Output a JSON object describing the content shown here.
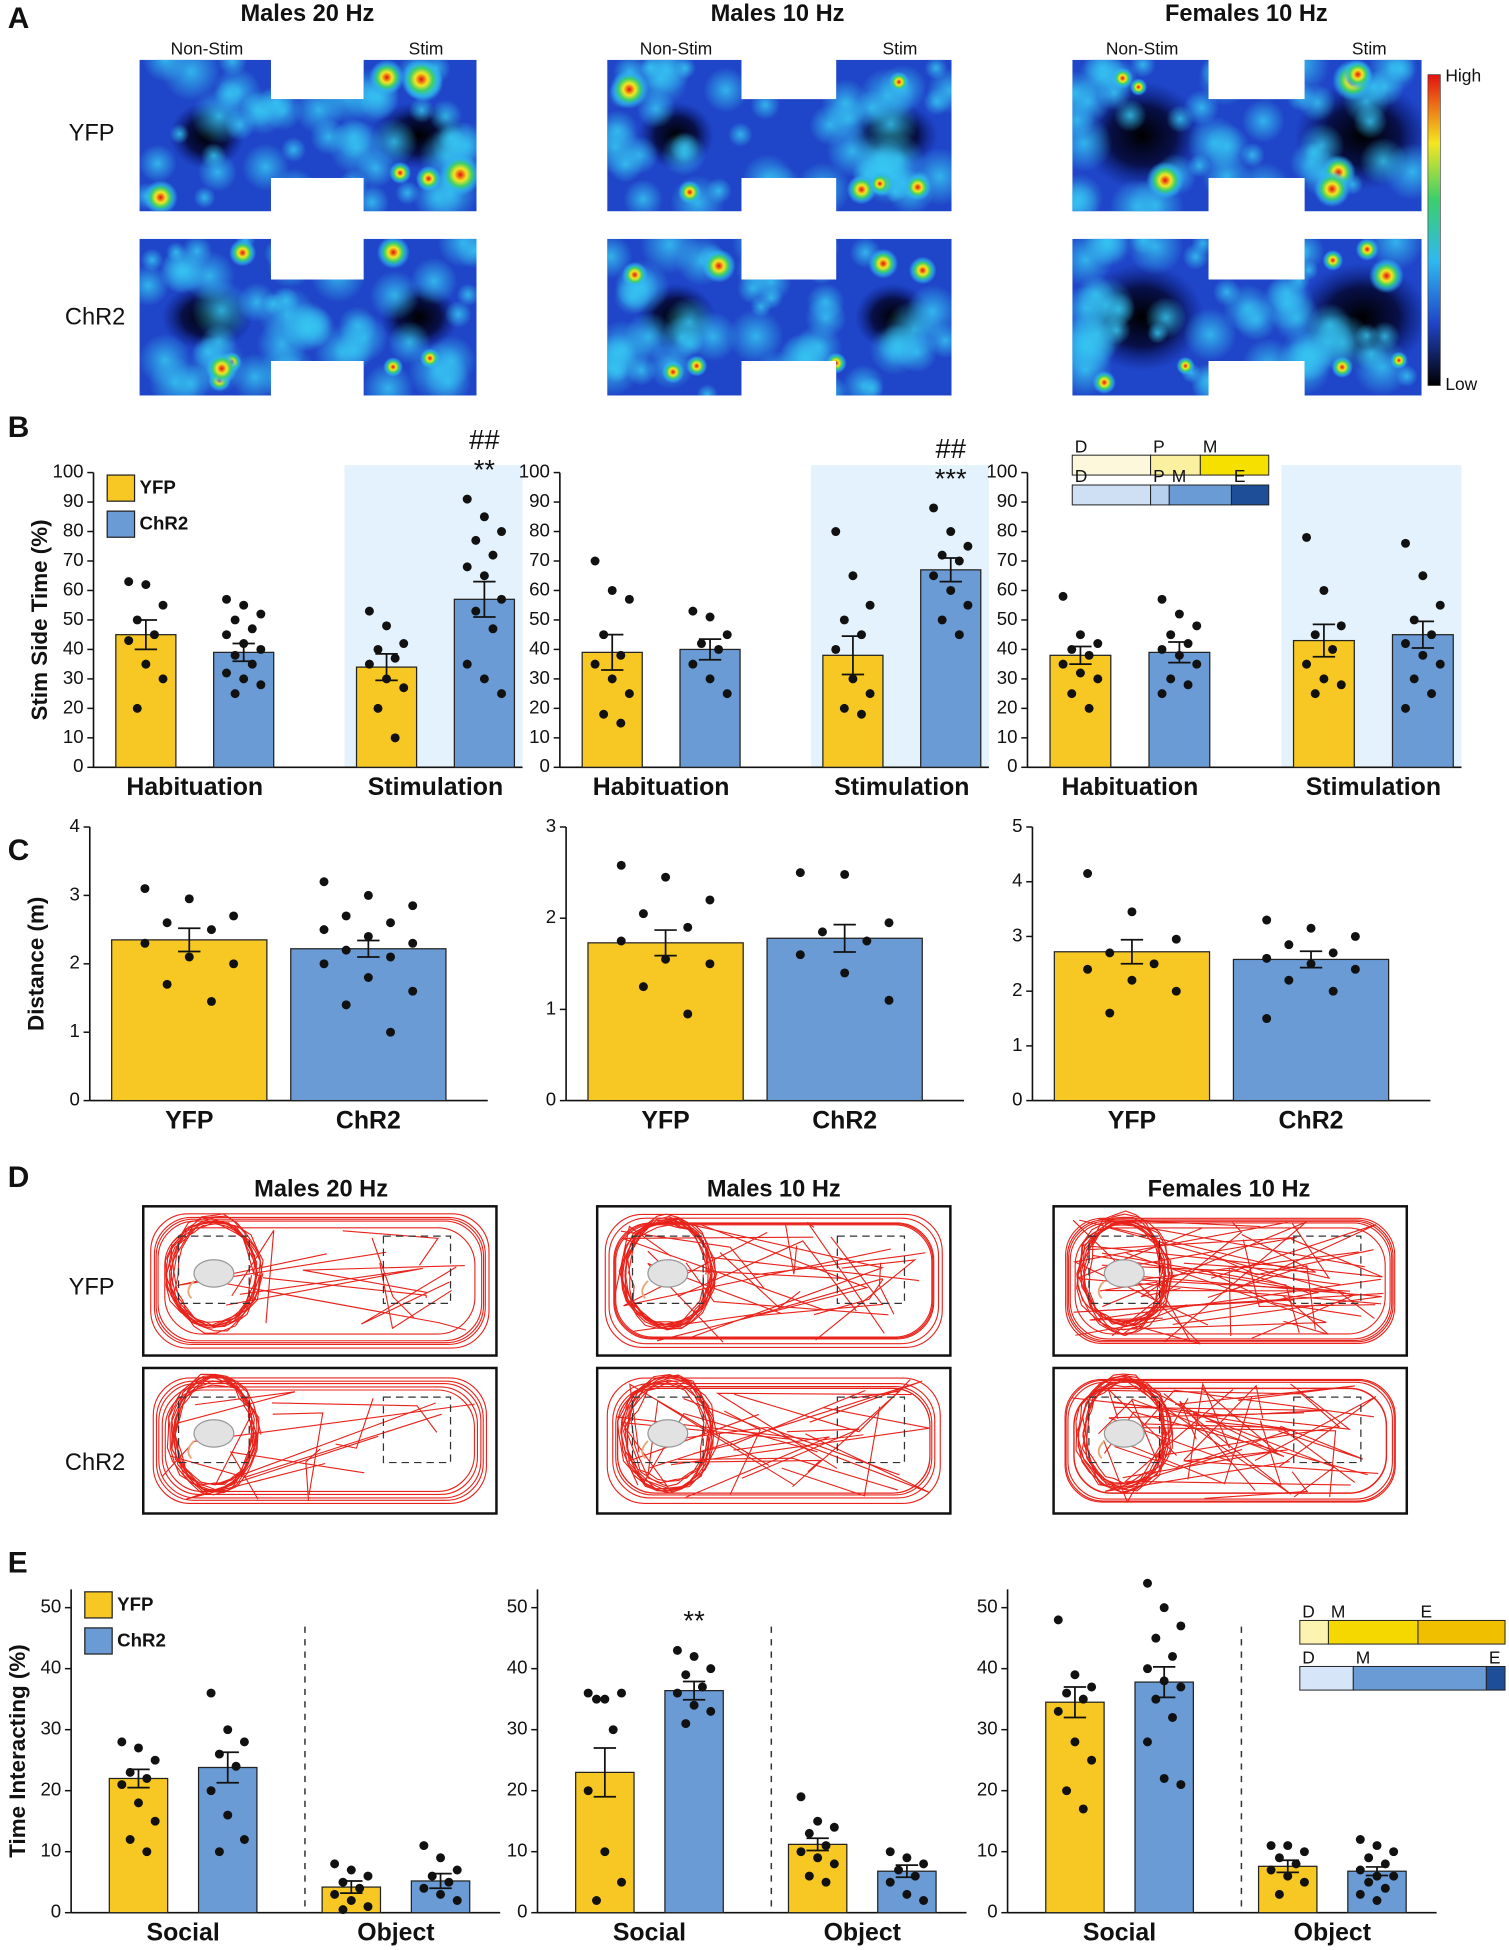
{
  "figure": {
    "panel_labels": [
      "A",
      "B",
      "C",
      "D",
      "E"
    ],
    "columns": [
      "Males 20 Hz",
      "Males 10 Hz",
      "Females 10 Hz"
    ],
    "rows": [
      "YFP",
      "ChR2"
    ],
    "zones": [
      "Non-Stim",
      "Stim"
    ],
    "colorbar": {
      "high": "High",
      "low": "Low"
    }
  },
  "chart_data": [
    {
      "type": "bar",
      "ylabel": "Stim Side Time (%)",
      "ylim": [
        0,
        100
      ],
      "yticks": [
        0,
        10,
        20,
        30,
        40,
        50,
        60,
        70,
        80,
        90,
        100
      ],
      "categories": [
        "Habituation",
        "Stimulation"
      ],
      "highlight_category": "Stimulation",
      "legend": "upper left",
      "series": [
        {
          "name": "YFP",
          "color": "#f7c823",
          "values": [
            45,
            34
          ],
          "errors": [
            5,
            4.5
          ],
          "points": [
            [
              63,
              62,
              55,
              50,
              45,
              43,
              35,
              30,
              20
            ],
            [
              53,
              48,
              42,
              40,
              37,
              35,
              30,
              27,
              20,
              10
            ]
          ]
        },
        {
          "name": "ChR2",
          "color": "#6a9bd5",
          "values": [
            39,
            57
          ],
          "errors": [
            3,
            6
          ],
          "points": [
            [
              57,
              55,
              52,
              50,
              47,
              45,
              42,
              40,
              38,
              35,
              32,
              30,
              28,
              25
            ],
            [
              91,
              85,
              80,
              77,
              72,
              68,
              65,
              57,
              53,
              47,
              35,
              30,
              25
            ]
          ]
        }
      ],
      "annotations": [
        {
          "text": "##",
          "category": "Stimulation",
          "series": "ChR2"
        },
        {
          "text": "**",
          "category": "Stimulation",
          "series": "ChR2"
        }
      ]
    },
    {
      "type": "bar",
      "ylim": [
        0,
        100
      ],
      "yticks": [
        0,
        10,
        20,
        30,
        40,
        50,
        60,
        70,
        80,
        90,
        100
      ],
      "categories": [
        "Habituation",
        "Stimulation"
      ],
      "highlight_category": "Stimulation",
      "series": [
        {
          "name": "YFP",
          "color": "#f7c823",
          "values": [
            39,
            38
          ],
          "errors": [
            6,
            6.5
          ],
          "points": [
            [
              70,
              60,
              57,
              45,
              38,
              35,
              30,
              25,
              18,
              15
            ],
            [
              80,
              65,
              55,
              50,
              45,
              40,
              30,
              25,
              20,
              18
            ]
          ]
        },
        {
          "name": "ChR2",
          "color": "#6a9bd5",
          "values": [
            40,
            67
          ],
          "errors": [
            3.5,
            4
          ],
          "points": [
            [
              53,
              51,
              45,
              42,
              40,
              35,
              30,
              25
            ],
            [
              88,
              80,
              75,
              72,
              70,
              65,
              60,
              55,
              50,
              45
            ]
          ]
        }
      ],
      "annotations": [
        {
          "text": "##",
          "category": "Stimulation",
          "series": "ChR2"
        },
        {
          "text": "***",
          "category": "Stimulation",
          "series": "ChR2"
        }
      ]
    },
    {
      "type": "bar",
      "ylim": [
        0,
        100
      ],
      "yticks": [
        0,
        10,
        20,
        30,
        40,
        50,
        60,
        70,
        80,
        90,
        100
      ],
      "categories": [
        "Habituation",
        "Stimulation"
      ],
      "highlight_category": "Stimulation",
      "series": [
        {
          "name": "YFP",
          "color": "#f7c823",
          "values": [
            38,
            43
          ],
          "errors": [
            3,
            5.5
          ],
          "points": [
            [
              58,
              45,
              42,
              40,
              38,
              35,
              32,
              30,
              25,
              20
            ],
            [
              78,
              60,
              48,
              45,
              40,
              35,
              30,
              28,
              25
            ]
          ]
        },
        {
          "name": "ChR2",
          "color": "#6a9bd5",
          "values": [
            39,
            45
          ],
          "errors": [
            3.5,
            4.5
          ],
          "points": [
            [
              57,
              52,
              48,
              45,
              42,
              40,
              38,
              35,
              30,
              28,
              25
            ],
            [
              76,
              65,
              55,
              50,
              45,
              42,
              38,
              35,
              30,
              25,
              20
            ]
          ]
        }
      ],
      "inset": [
        {
          "segments": [
            {
              "label": "D",
              "color": "#fdf8dc"
            },
            {
              "label": "P",
              "color": "#fbf0a0"
            },
            {
              "label": "M",
              "color": "#f5e000"
            }
          ]
        },
        {
          "segments": [
            {
              "label": "D",
              "color": "#cfe0f5"
            },
            {
              "label": "P",
              "color": "#b7d0ee"
            },
            {
              "label": "M",
              "color": "#6a9bd5"
            },
            {
              "label": "E",
              "color": "#1f4e99"
            }
          ]
        }
      ]
    },
    {
      "type": "bar",
      "ylabel": "Distance (m)",
      "ylim": [
        0,
        4
      ],
      "yticks": [
        0,
        1,
        2,
        3,
        4
      ],
      "categories": [
        "YFP",
        "ChR2"
      ],
      "colors": [
        "#f7c823",
        "#6a9bd5"
      ],
      "values": [
        2.35,
        2.22
      ],
      "errors": [
        0.17,
        0.12
      ],
      "points": [
        [
          3.1,
          2.95,
          2.7,
          2.6,
          2.5,
          2.3,
          2.1,
          2.0,
          1.7,
          1.45
        ],
        [
          3.2,
          3.0,
          2.85,
          2.7,
          2.6,
          2.5,
          2.4,
          2.3,
          2.2,
          2.1,
          2.0,
          1.8,
          1.6,
          1.4,
          1.0
        ]
      ]
    },
    {
      "type": "bar",
      "ylim": [
        0,
        3
      ],
      "yticks": [
        0,
        1,
        2,
        3
      ],
      "categories": [
        "YFP",
        "ChR2"
      ],
      "colors": [
        "#f7c823",
        "#6a9bd5"
      ],
      "values": [
        1.73,
        1.78
      ],
      "errors": [
        0.14,
        0.15
      ],
      "points": [
        [
          2.58,
          2.45,
          2.2,
          2.05,
          1.9,
          1.75,
          1.55,
          1.5,
          1.25,
          0.95
        ],
        [
          2.5,
          2.48,
          1.95,
          1.85,
          1.75,
          1.6,
          1.4,
          1.1
        ]
      ]
    },
    {
      "type": "bar",
      "ylim": [
        0,
        5
      ],
      "yticks": [
        0,
        1,
        2,
        3,
        4,
        5
      ],
      "categories": [
        "YFP",
        "ChR2"
      ],
      "colors": [
        "#f7c823",
        "#6a9bd5"
      ],
      "values": [
        2.72,
        2.58
      ],
      "errors": [
        0.22,
        0.15
      ],
      "points": [
        [
          4.15,
          3.45,
          2.95,
          2.7,
          2.5,
          2.4,
          2.2,
          2.0,
          1.6
        ],
        [
          3.3,
          3.15,
          3.0,
          2.85,
          2.7,
          2.6,
          2.5,
          2.4,
          2.2,
          2.0,
          1.5
        ]
      ]
    },
    {
      "type": "bar",
      "ylabel": "Time Interacting (%)",
      "ylim": [
        0,
        53
      ],
      "yticks": [
        0,
        10,
        20,
        30,
        40,
        50
      ],
      "categories": [
        "Social",
        "Object"
      ],
      "divider": true,
      "legend": "upper left",
      "series": [
        {
          "name": "YFP",
          "color": "#f7c823",
          "values": [
            22,
            4.2
          ],
          "errors": [
            1.5,
            1
          ],
          "points": [
            [
              28,
              27,
              25,
              23,
              22,
              21,
              18,
              15,
              12,
              10
            ],
            [
              8,
              7,
              6,
              5,
              4,
              3,
              2,
              1,
              0.5
            ]
          ]
        },
        {
          "name": "ChR2",
          "color": "#6a9bd5",
          "values": [
            23.8,
            5.2
          ],
          "errors": [
            2.5,
            1.2
          ],
          "points": [
            [
              36,
              30,
              28,
              26,
              24,
              20,
              16,
              12,
              10
            ],
            [
              11,
              9,
              7,
              6,
              5,
              4,
              3,
              2
            ]
          ]
        }
      ]
    },
    {
      "type": "bar",
      "ylim": [
        0,
        53
      ],
      "yticks": [
        0,
        10,
        20,
        30,
        40,
        50
      ],
      "categories": [
        "Social",
        "Object"
      ],
      "divider": true,
      "series": [
        {
          "name": "YFP",
          "color": "#f7c823",
          "values": [
            23,
            11.2
          ],
          "errors": [
            4,
            1
          ],
          "points": [
            [
              36,
              35,
              36,
              35,
              30,
              20,
              10,
              5,
              2
            ],
            [
              19,
              15,
              14,
              13,
              11,
              10,
              9,
              8,
              6,
              5
            ]
          ]
        },
        {
          "name": "ChR2",
          "color": "#6a9bd5",
          "values": [
            36.4,
            6.8
          ],
          "errors": [
            1.5,
            1
          ],
          "points": [
            [
              43,
              42,
              40,
              39,
              37,
              36,
              34,
              33,
              31
            ],
            [
              10,
              9,
              8,
              7,
              6,
              5,
              3,
              2
            ]
          ]
        }
      ],
      "annotations": [
        {
          "text": "**",
          "category": "Social",
          "series": "ChR2"
        }
      ]
    },
    {
      "type": "bar",
      "ylim": [
        0,
        53
      ],
      "yticks": [
        0,
        10,
        20,
        30,
        40,
        50
      ],
      "categories": [
        "Social",
        "Object"
      ],
      "divider": true,
      "series": [
        {
          "name": "YFP",
          "color": "#f7c823",
          "values": [
            34.5,
            7.6
          ],
          "errors": [
            2.5,
            1
          ],
          "points": [
            [
              48,
              39,
              37,
              36,
              35,
              33,
              28,
              25,
              20,
              17
            ],
            [
              11,
              11,
              10,
              9,
              8,
              7,
              6,
              5,
              3
            ]
          ]
        },
        {
          "name": "ChR2",
          "color": "#6a9bd5",
          "values": [
            37.8,
            6.8
          ],
          "errors": [
            2.5,
            0.7
          ],
          "points": [
            [
              54,
              50,
              47,
              45,
              42,
              40,
              38,
              37,
              35,
              32,
              28,
              22,
              21
            ],
            [
              12,
              11,
              10,
              9,
              8,
              7,
              6,
              6,
              5,
              4,
              3,
              2
            ]
          ]
        }
      ],
      "inset": [
        {
          "segments": [
            {
              "label": "D",
              "color": "#fdf3b0"
            },
            {
              "label": "M",
              "color": "#f5d800"
            },
            {
              "label": "E",
              "color": "#f0c000"
            }
          ]
        },
        {
          "segments": [
            {
              "label": "D",
              "color": "#d6e5f7"
            },
            {
              "label": "M",
              "color": "#6a9bd5"
            },
            {
              "label": "E",
              "color": "#1f4e99"
            }
          ]
        }
      ]
    }
  ]
}
